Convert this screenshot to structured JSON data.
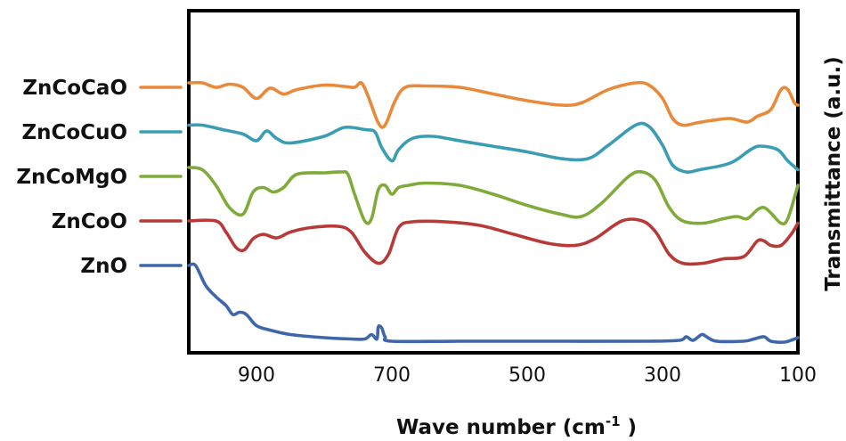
{
  "chart_data": {
    "type": "line",
    "xlabel": "Wave number (cm",
    "xlabel_sup": "-1",
    "xlabel_end": " )",
    "ylabel": "Transmittance (a.u.)",
    "xlim": [
      1000,
      100
    ],
    "x_reversed": true,
    "xticks": [
      {
        "value": 900,
        "label": "900"
      },
      {
        "value": 700,
        "label": "700"
      },
      {
        "value": 500,
        "label": "500"
      },
      {
        "value": 300,
        "label": "300"
      },
      {
        "value": 100,
        "label": "100"
      }
    ],
    "y_ticks_shown": false,
    "grid": false,
    "legend_placement": "left",
    "series": [
      {
        "name": "ZnCoCaO",
        "color": "#E9893A",
        "offset": 4.0,
        "points": [
          [
            1000,
            0.1
          ],
          [
            980,
            0.1
          ],
          [
            960,
            0.0
          ],
          [
            940,
            0.07
          ],
          [
            920,
            0.0
          ],
          [
            900,
            -0.25
          ],
          [
            880,
            -0.02
          ],
          [
            860,
            -0.15
          ],
          [
            840,
            -0.05
          ],
          [
            800,
            0.05
          ],
          [
            770,
            0.02
          ],
          [
            755,
            0.0
          ],
          [
            745,
            0.1
          ],
          [
            735,
            -0.2
          ],
          [
            720,
            -0.8
          ],
          [
            710,
            -0.85
          ],
          [
            695,
            -0.3
          ],
          [
            680,
            0.0
          ],
          [
            650,
            0.03
          ],
          [
            600,
            0.0
          ],
          [
            550,
            -0.15
          ],
          [
            500,
            -0.3
          ],
          [
            450,
            -0.4
          ],
          [
            420,
            -0.35
          ],
          [
            380,
            -0.05
          ],
          [
            340,
            0.1
          ],
          [
            320,
            0.05
          ],
          [
            300,
            -0.25
          ],
          [
            285,
            -0.7
          ],
          [
            270,
            -0.85
          ],
          [
            250,
            -0.8
          ],
          [
            230,
            -0.75
          ],
          [
            200,
            -0.7
          ],
          [
            175,
            -0.78
          ],
          [
            160,
            -0.65
          ],
          [
            140,
            -0.5
          ],
          [
            125,
            -0.05
          ],
          [
            115,
            -0.05
          ],
          [
            105,
            -0.35
          ],
          [
            100,
            -0.4
          ]
        ]
      },
      {
        "name": "ZnCoCuO",
        "color": "#3A9DB3",
        "offset": 3.0,
        "points": [
          [
            1000,
            0.15
          ],
          [
            980,
            0.15
          ],
          [
            950,
            0.05
          ],
          [
            920,
            -0.05
          ],
          [
            900,
            -0.2
          ],
          [
            885,
            0.02
          ],
          [
            870,
            -0.15
          ],
          [
            850,
            -0.25
          ],
          [
            800,
            -0.1
          ],
          [
            770,
            0.1
          ],
          [
            740,
            0.05
          ],
          [
            725,
            0.0
          ],
          [
            715,
            -0.35
          ],
          [
            700,
            -0.65
          ],
          [
            690,
            -0.4
          ],
          [
            670,
            -0.15
          ],
          [
            640,
            -0.1
          ],
          [
            600,
            -0.2
          ],
          [
            560,
            -0.3
          ],
          [
            500,
            -0.45
          ],
          [
            450,
            -0.6
          ],
          [
            410,
            -0.6
          ],
          [
            380,
            -0.3
          ],
          [
            340,
            0.15
          ],
          [
            320,
            0.12
          ],
          [
            300,
            -0.3
          ],
          [
            285,
            -0.75
          ],
          [
            265,
            -0.9
          ],
          [
            245,
            -0.85
          ],
          [
            200,
            -0.7
          ],
          [
            170,
            -0.4
          ],
          [
            155,
            -0.32
          ],
          [
            130,
            -0.4
          ],
          [
            115,
            -0.65
          ],
          [
            100,
            -0.85
          ]
        ]
      },
      {
        "name": "ZnCoMgO",
        "color": "#80AB3B",
        "offset": 2.0,
        "points": [
          [
            1000,
            0.2
          ],
          [
            980,
            0.15
          ],
          [
            960,
            -0.2
          ],
          [
            940,
            -0.7
          ],
          [
            920,
            -0.85
          ],
          [
            905,
            -0.35
          ],
          [
            890,
            -0.25
          ],
          [
            875,
            -0.35
          ],
          [
            860,
            -0.25
          ],
          [
            840,
            0.05
          ],
          [
            800,
            0.08
          ],
          [
            775,
            0.1
          ],
          [
            765,
            0.05
          ],
          [
            755,
            -0.4
          ],
          [
            740,
            -1.0
          ],
          [
            730,
            -0.95
          ],
          [
            720,
            -0.3
          ],
          [
            710,
            -0.2
          ],
          [
            700,
            -0.4
          ],
          [
            690,
            -0.25
          ],
          [
            675,
            -0.2
          ],
          [
            650,
            -0.15
          ],
          [
            600,
            -0.2
          ],
          [
            550,
            -0.4
          ],
          [
            500,
            -0.65
          ],
          [
            450,
            -0.85
          ],
          [
            420,
            -0.9
          ],
          [
            390,
            -0.6
          ],
          [
            350,
            0.0
          ],
          [
            330,
            0.1
          ],
          [
            310,
            -0.1
          ],
          [
            290,
            -0.7
          ],
          [
            270,
            -1.0
          ],
          [
            240,
            -1.05
          ],
          [
            210,
            -0.95
          ],
          [
            190,
            -0.9
          ],
          [
            175,
            -0.95
          ],
          [
            160,
            -0.75
          ],
          [
            150,
            -0.7
          ],
          [
            140,
            -0.82
          ],
          [
            125,
            -1.05
          ],
          [
            115,
            -0.95
          ],
          [
            100,
            -0.2
          ]
        ]
      },
      {
        "name": "ZnCoO",
        "color": "#B83A38",
        "offset": 1.0,
        "points": [
          [
            1000,
            0.0
          ],
          [
            960,
            0.0
          ],
          [
            945,
            -0.25
          ],
          [
            930,
            -0.6
          ],
          [
            918,
            -0.65
          ],
          [
            905,
            -0.4
          ],
          [
            890,
            -0.3
          ],
          [
            870,
            -0.38
          ],
          [
            850,
            -0.25
          ],
          [
            820,
            -0.15
          ],
          [
            780,
            -0.12
          ],
          [
            760,
            -0.25
          ],
          [
            740,
            -0.7
          ],
          [
            720,
            -0.95
          ],
          [
            705,
            -0.75
          ],
          [
            690,
            -0.15
          ],
          [
            670,
            -0.02
          ],
          [
            620,
            -0.02
          ],
          [
            570,
            -0.1
          ],
          [
            520,
            -0.3
          ],
          [
            470,
            -0.5
          ],
          [
            430,
            -0.55
          ],
          [
            400,
            -0.4
          ],
          [
            360,
            0.0
          ],
          [
            330,
            0.0
          ],
          [
            310,
            -0.25
          ],
          [
            290,
            -0.75
          ],
          [
            270,
            -0.95
          ],
          [
            240,
            -0.95
          ],
          [
            210,
            -0.85
          ],
          [
            180,
            -0.8
          ],
          [
            160,
            -0.45
          ],
          [
            150,
            -0.45
          ],
          [
            140,
            -0.55
          ],
          [
            125,
            -0.55
          ],
          [
            110,
            -0.3
          ],
          [
            100,
            -0.05
          ]
        ]
      },
      {
        "name": "ZnO",
        "color": "#3E66AA",
        "offset": 0.0,
        "points": [
          [
            1000,
            0.0
          ],
          [
            990,
            0.0
          ],
          [
            975,
            -0.45
          ],
          [
            960,
            -0.7
          ],
          [
            945,
            -0.9
          ],
          [
            935,
            -1.1
          ],
          [
            925,
            -1.05
          ],
          [
            915,
            -1.1
          ],
          [
            900,
            -1.35
          ],
          [
            880,
            -1.45
          ],
          [
            850,
            -1.55
          ],
          [
            800,
            -1.62
          ],
          [
            760,
            -1.65
          ],
          [
            740,
            -1.65
          ],
          [
            730,
            -1.55
          ],
          [
            722,
            -1.65
          ],
          [
            720,
            -1.38
          ],
          [
            715,
            -1.4
          ],
          [
            710,
            -1.6
          ],
          [
            700,
            -1.7
          ],
          [
            600,
            -1.7
          ],
          [
            450,
            -1.7
          ],
          [
            320,
            -1.7
          ],
          [
            275,
            -1.68
          ],
          [
            265,
            -1.6
          ],
          [
            255,
            -1.68
          ],
          [
            242,
            -1.55
          ],
          [
            235,
            -1.6
          ],
          [
            220,
            -1.7
          ],
          [
            180,
            -1.7
          ],
          [
            165,
            -1.65
          ],
          [
            150,
            -1.6
          ],
          [
            140,
            -1.7
          ],
          [
            120,
            -1.72
          ],
          [
            105,
            -1.65
          ],
          [
            100,
            -1.62
          ]
        ]
      }
    ]
  }
}
